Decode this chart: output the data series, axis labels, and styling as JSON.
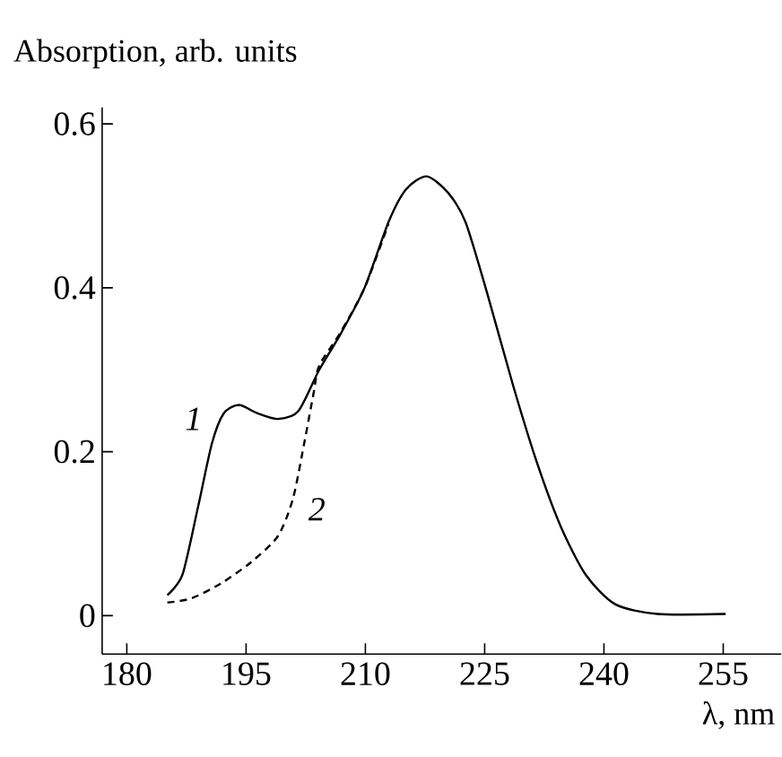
{
  "chart_data": {
    "type": "line",
    "ylabel": "Absorption, arb. units",
    "xlabel": "λ, nm",
    "xlim": [
      176.9,
      262.3
    ],
    "ylim": [
      -0.047,
      0.62
    ],
    "xticks": [
      180,
      195,
      210,
      225,
      240,
      255
    ],
    "yticks": [
      0,
      0.2,
      0.4,
      0.6
    ],
    "marker": "none",
    "series": [
      {
        "color": "#000000",
        "line_style": "solid",
        "x": [
          185.1,
          187.0,
          188.9,
          190.7,
          192.2,
          194.1,
          196.4,
          199.0,
          201.6,
          204.2,
          206.9,
          209.9,
          212.9,
          215.1,
          217.7,
          220.4,
          222.6,
          225.3,
          228.6,
          231.6,
          234.6,
          237.7,
          241.4,
          246.7,
          255.3
        ],
        "values": [
          0.025,
          0.05,
          0.13,
          0.21,
          0.247,
          0.257,
          0.247,
          0.24,
          0.25,
          0.3,
          0.344,
          0.4,
          0.48,
          0.52,
          0.536,
          0.516,
          0.48,
          0.394,
          0.28,
          0.186,
          0.108,
          0.05,
          0.014,
          0.002,
          0.002
        ]
      },
      {
        "color": "#000000",
        "line_style": "dashed",
        "x": [
          185.1,
          188.1,
          191.8,
          195.6,
          199.0,
          200.9,
          202.4,
          203.5,
          204.2,
          206.9,
          209.9,
          212.9
        ],
        "values": [
          0.016,
          0.021,
          0.039,
          0.065,
          0.097,
          0.143,
          0.215,
          0.272,
          0.305,
          0.346,
          0.4,
          0.478
        ]
      }
    ],
    "annotations": [
      "1",
      "2"
    ]
  }
}
